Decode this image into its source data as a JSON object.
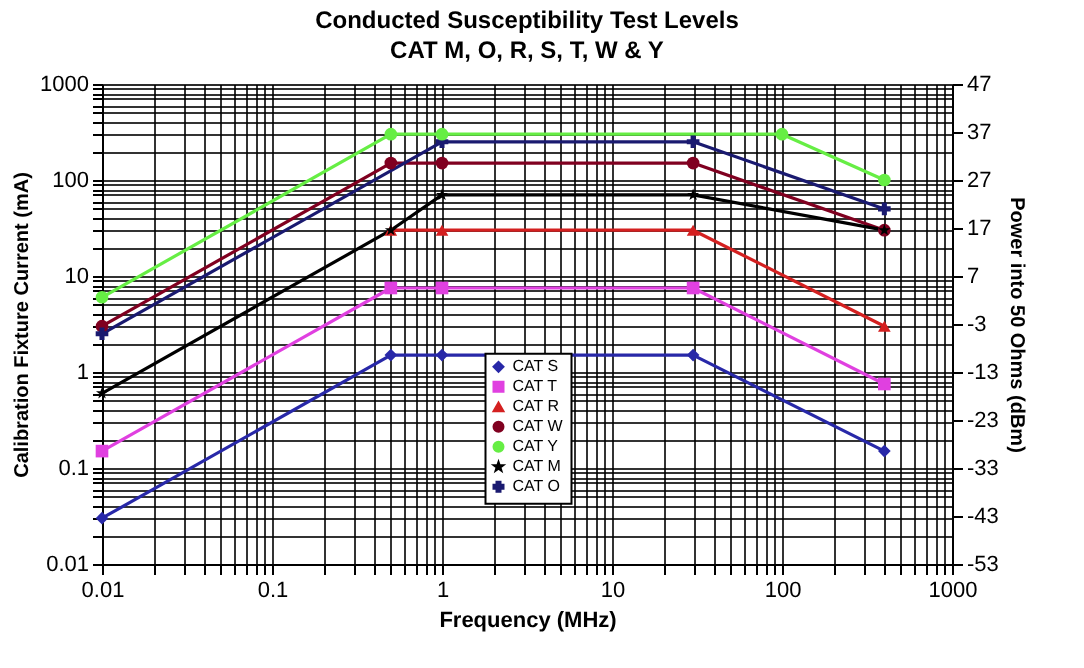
{
  "chart_data": {
    "type": "line",
    "title": "Conducted Susceptibility Test Levels",
    "subtitle": "CAT M, O, R, S, T, W & Y",
    "xlabel": "Frequency (MHz)",
    "ylabel": "Calibration Fixture Current (mA)",
    "y2label": "Power into 50 Ohms (dBm)",
    "log": "xy",
    "grid": true,
    "legend": "bottom",
    "xlim": [
      0.01,
      1000
    ],
    "ylim": [
      0.01,
      1000
    ],
    "y2lim": [
      -53,
      47
    ],
    "xticks": [
      0.01,
      {
        "value": 0.02,
        "label": null
      },
      {
        "value": 0.03,
        "label": null
      },
      {
        "value": 0.04,
        "label": null
      },
      {
        "value": 0.05,
        "label": null
      },
      {
        "value": 0.06,
        "label": null
      },
      {
        "value": 0.07,
        "label": null
      },
      {
        "value": 0.08,
        "label": null
      },
      {
        "value": 0.09,
        "label": null
      },
      0.1,
      {
        "value": 0.2,
        "label": null
      },
      {
        "value": 0.3,
        "label": null
      },
      {
        "value": 0.4,
        "label": null
      },
      {
        "value": 0.5,
        "label": null
      },
      {
        "value": 0.6,
        "label": null
      },
      {
        "value": 0.7,
        "label": null
      },
      {
        "value": 0.8,
        "label": null
      },
      {
        "value": 0.9,
        "label": null
      },
      1,
      {
        "value": 2,
        "label": null
      },
      {
        "value": 3,
        "label": null
      },
      {
        "value": 4,
        "label": null
      },
      {
        "value": 5,
        "label": null
      },
      {
        "value": 6,
        "label": null
      },
      {
        "value": 7,
        "label": null
      },
      {
        "value": 8,
        "label": null
      },
      {
        "value": 9,
        "label": null
      },
      10,
      {
        "value": 20,
        "label": null
      },
      {
        "value": 30,
        "label": null
      },
      {
        "value": 40,
        "label": null
      },
      {
        "value": 50,
        "label": null
      },
      {
        "value": 60,
        "label": null
      },
      {
        "value": 70,
        "label": null
      },
      {
        "value": 80,
        "label": null
      },
      {
        "value": 90,
        "label": null
      },
      100,
      {
        "value": 200,
        "label": null
      },
      {
        "value": 300,
        "label": null
      },
      {
        "value": 400,
        "label": null
      },
      {
        "value": 500,
        "label": null
      },
      {
        "value": 600,
        "label": null
      },
      {
        "value": 700,
        "label": null
      },
      {
        "value": 800,
        "label": null
      },
      {
        "value": 900,
        "label": null
      },
      1000
    ],
    "yticks": [
      0.01,
      {
        "value": 0.02,
        "label": null
      },
      {
        "value": 0.03,
        "label": null
      },
      {
        "value": 0.04,
        "label": null
      },
      {
        "value": 0.05,
        "label": null
      },
      {
        "value": 0.06,
        "label": null
      },
      {
        "value": 0.07,
        "label": null
      },
      {
        "value": 0.08,
        "label": null
      },
      {
        "value": 0.09,
        "label": null
      },
      0.1,
      {
        "value": 0.2,
        "label": null
      },
      {
        "value": 0.3,
        "label": null
      },
      {
        "value": 0.4,
        "label": null
      },
      {
        "value": 0.5,
        "label": null
      },
      {
        "value": 0.6,
        "label": null
      },
      {
        "value": 0.7,
        "label": null
      },
      {
        "value": 0.8,
        "label": null
      },
      {
        "value": 0.9,
        "label": null
      },
      1,
      {
        "value": 2,
        "label": null
      },
      {
        "value": 3,
        "label": null
      },
      {
        "value": 4,
        "label": null
      },
      {
        "value": 5,
        "label": null
      },
      {
        "value": 6,
        "label": null
      },
      {
        "value": 7,
        "label": null
      },
      {
        "value": 8,
        "label": null
      },
      {
        "value": 9,
        "label": null
      },
      10,
      {
        "value": 20,
        "label": null
      },
      {
        "value": 30,
        "label": null
      },
      {
        "value": 40,
        "label": null
      },
      {
        "value": 50,
        "label": null
      },
      {
        "value": 60,
        "label": null
      },
      {
        "value": 70,
        "label": null
      },
      {
        "value": 80,
        "label": null
      },
      {
        "value": 90,
        "label": null
      },
      100,
      {
        "value": 200,
        "label": null
      },
      {
        "value": 300,
        "label": null
      },
      {
        "value": 400,
        "label": null
      },
      {
        "value": 500,
        "label": null
      },
      {
        "value": 600,
        "label": null
      },
      {
        "value": 700,
        "label": null
      },
      {
        "value": 800,
        "label": null
      },
      {
        "value": 900,
        "label": null
      },
      1000
    ],
    "y2ticks": [
      -53,
      -43,
      -33,
      -23,
      -13,
      -3,
      7,
      17,
      27,
      37,
      47
    ],
    "series": [
      {
        "name": "CAT S",
        "color": "#2828a8",
        "marker": "diamond",
        "x": [
          0.01,
          0.5,
          1,
          30,
          400
        ],
        "values": [
          0.03,
          1.5,
          1.5,
          1.5,
          0.15
        ]
      },
      {
        "name": "CAT T",
        "color": "#e040e0",
        "marker": "square",
        "x": [
          0.01,
          0.5,
          1,
          30,
          400
        ],
        "values": [
          0.15,
          7.5,
          7.5,
          7.5,
          0.75
        ]
      },
      {
        "name": "CAT R",
        "color": "#d42020",
        "marker": "triangle",
        "x": [
          0.5,
          1,
          30,
          400
        ],
        "values": [
          30,
          30,
          30,
          3
        ]
      },
      {
        "name": "CAT W",
        "color": "#800020",
        "marker": "circle",
        "x": [
          0.01,
          0.5,
          1,
          30,
          400
        ],
        "values": [
          3,
          150,
          150,
          150,
          30
        ]
      },
      {
        "name": "CAT Y",
        "color": "#66ee44",
        "marker": "circle",
        "x": [
          0.01,
          0.5,
          1,
          100,
          400
        ],
        "values": [
          6,
          300,
          300,
          300,
          100
        ]
      },
      {
        "name": "CAT M",
        "color": "#000000",
        "marker": "star",
        "x": [
          0.01,
          0.5,
          1,
          30,
          400
        ],
        "values": [
          0.6,
          30,
          70,
          70,
          30
        ]
      },
      {
        "name": "CAT O",
        "color": "#1a1a70",
        "marker": "cross",
        "x": [
          0.01,
          1,
          30,
          400
        ],
        "values": [
          2.5,
          250,
          250,
          50
        ]
      }
    ]
  }
}
